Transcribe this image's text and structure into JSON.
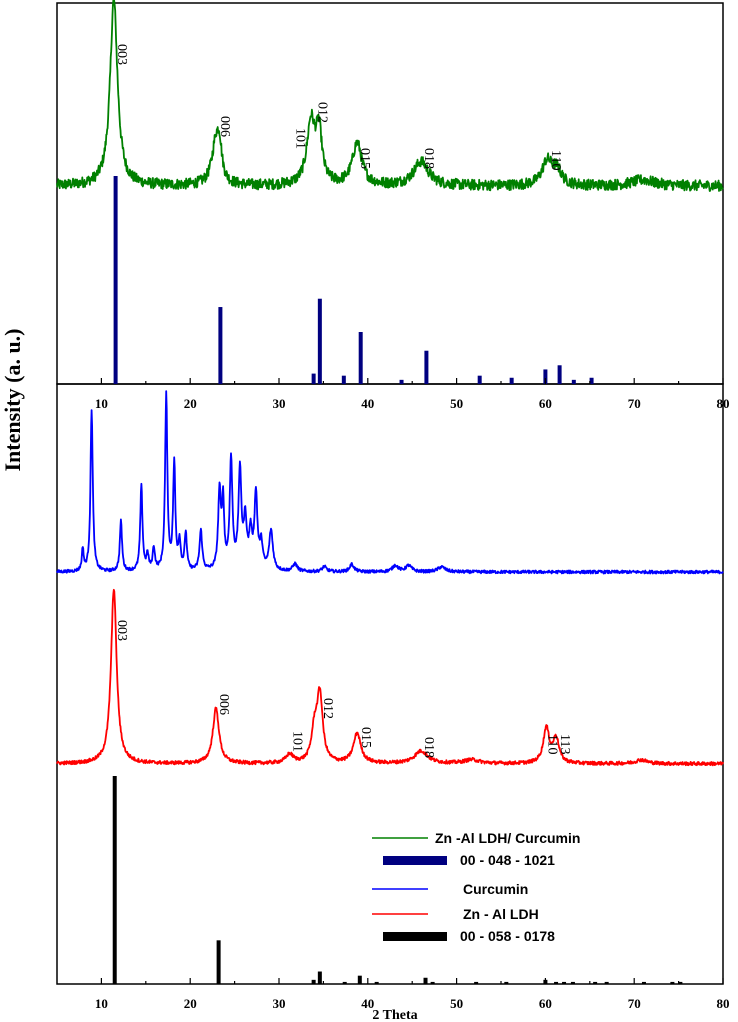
{
  "chart_data": {
    "type": "line",
    "xlabel": "2 Theta",
    "ylabel": "Intensity (a. u.)",
    "xlim": [
      5,
      80
    ],
    "x_ticks": [
      "10",
      "20",
      "30",
      "40",
      "50",
      "60",
      "70",
      "80"
    ],
    "panels": [
      {
        "id": "top",
        "series": [
          {
            "name": "Zn -Al LDH/ Curcumin",
            "color": "#008000",
            "baseline": 0.2,
            "noise": 0.045,
            "peaks": [
              [
                11.4,
                1.55,
                0.5
              ],
              [
                22.9,
                0.36,
                0.55
              ],
              [
                23.3,
                0.22,
                0.3
              ],
              [
                33.6,
                0.52,
                0.55
              ],
              [
                34.5,
                0.42,
                0.4
              ],
              [
                38.8,
                0.35,
                0.65
              ],
              [
                46.0,
                0.2,
                1.0
              ],
              [
                60.2,
                0.2,
                0.7
              ],
              [
                61.3,
                0.12,
                0.6
              ],
              [
                71.0,
                0.05,
                1.5
              ]
            ]
          }
        ],
        "reference": {
          "name": "00 - 048 - 1021",
          "color": "#000080",
          "lines": [
            [
              11.6,
              100
            ],
            [
              23.4,
              37
            ],
            [
              33.9,
              5
            ],
            [
              34.6,
              41
            ],
            [
              37.3,
              4
            ],
            [
              39.2,
              25
            ],
            [
              43.8,
              2
            ],
            [
              46.6,
              16
            ],
            [
              52.6,
              4
            ],
            [
              56.2,
              3
            ],
            [
              60.0,
              7
            ],
            [
              61.6,
              9
            ],
            [
              63.2,
              2
            ],
            [
              65.2,
              3
            ]
          ]
        },
        "peak_labels": [
          {
            "text": "003",
            "x": 11.4
          },
          {
            "text": "006",
            "x": 23.0
          },
          {
            "text": "101",
            "x": 31.5
          },
          {
            "text": "012",
            "x": 34.0
          },
          {
            "text": "015",
            "x": 38.8
          },
          {
            "text": "018",
            "x": 46.0
          },
          {
            "text": "110",
            "x": 60.3
          }
        ]
      },
      {
        "id": "bottom",
        "series": [
          {
            "name": "Curcumin",
            "color": "#0000ff",
            "baseline": 0.0,
            "noise": 0.012,
            "peaks": [
              [
                7.9,
                0.18,
                0.12
              ],
              [
                8.9,
                1.3,
                0.15
              ],
              [
                12.2,
                0.4,
                0.15
              ],
              [
                14.5,
                0.68,
                0.15
              ],
              [
                15.2,
                0.12,
                0.15
              ],
              [
                15.9,
                0.18,
                0.15
              ],
              [
                17.3,
                1.4,
                0.15
              ],
              [
                18.2,
                0.85,
                0.15
              ],
              [
                18.8,
                0.22,
                0.15
              ],
              [
                19.5,
                0.3,
                0.15
              ],
              [
                21.2,
                0.32,
                0.18
              ],
              [
                23.3,
                0.62,
                0.18
              ],
              [
                23.7,
                0.52,
                0.15
              ],
              [
                24.6,
                0.88,
                0.18
              ],
              [
                25.6,
                0.78,
                0.2
              ],
              [
                26.2,
                0.38,
                0.2
              ],
              [
                26.8,
                0.28,
                0.2
              ],
              [
                27.4,
                0.6,
                0.2
              ],
              [
                28.0,
                0.2,
                0.2
              ],
              [
                29.1,
                0.32,
                0.25
              ],
              [
                31.8,
                0.06,
                0.3
              ],
              [
                35.1,
                0.04,
                0.3
              ],
              [
                38.2,
                0.06,
                0.3
              ],
              [
                43.1,
                0.05,
                0.4
              ],
              [
                44.6,
                0.05,
                0.4
              ],
              [
                48.3,
                0.04,
                0.5
              ]
            ]
          },
          {
            "name": "Zn - Al LDH",
            "color": "#ff0000",
            "baseline": -1.75,
            "noise": 0.014,
            "peaks": [
              [
                11.4,
                1.4,
                0.38
              ],
              [
                22.9,
                0.44,
                0.42
              ],
              [
                31.2,
                0.07,
                0.5
              ],
              [
                34.0,
                0.25,
                0.4
              ],
              [
                34.6,
                0.53,
                0.38
              ],
              [
                38.8,
                0.24,
                0.5
              ],
              [
                46.0,
                0.1,
                0.9
              ],
              [
                51.7,
                0.03,
                1.0
              ],
              [
                60.1,
                0.28,
                0.4
              ],
              [
                61.2,
                0.2,
                0.4
              ],
              [
                70.8,
                0.03,
                0.8
              ]
            ]
          }
        ],
        "reference": {
          "name": "00 - 058 - 0178",
          "color": "#000000",
          "lines": [
            [
              11.5,
              100
            ],
            [
              23.2,
              21
            ],
            [
              33.9,
              2
            ],
            [
              34.6,
              6
            ],
            [
              37.4,
              1
            ],
            [
              39.1,
              4
            ],
            [
              41.0,
              1
            ],
            [
              46.5,
              3
            ],
            [
              47.3,
              1
            ],
            [
              52.2,
              1
            ],
            [
              55.6,
              1
            ],
            [
              60.0,
              2
            ],
            [
              61.2,
              1
            ],
            [
              62.1,
              1
            ],
            [
              63.1,
              1
            ],
            [
              65.6,
              1
            ],
            [
              66.9,
              1
            ],
            [
              71.1,
              1
            ],
            [
              74.3,
              1
            ],
            [
              75.2,
              1
            ]
          ]
        },
        "peak_labels": [
          {
            "text": "003",
            "x": 11.4
          },
          {
            "text": "006",
            "x": 22.9
          },
          {
            "text": "101",
            "x": 31.2
          },
          {
            "text": "012",
            "x": 34.6
          },
          {
            "text": "015",
            "x": 38.9
          },
          {
            "text": "018",
            "x": 46.0
          },
          {
            "text": "110",
            "x": 59.9
          },
          {
            "text": "113",
            "x": 61.3
          }
        ]
      }
    ],
    "legend_position": "bottom-right",
    "legend": [
      {
        "label": "Zn -Al LDH/ Curcumin",
        "color": "#008000",
        "style": "line"
      },
      {
        "label": "00 - 048 - 1021",
        "color": "#000080",
        "style": "bar"
      },
      {
        "label": "Curcumin",
        "color": "#0000ff",
        "style": "line"
      },
      {
        "label": "Zn - Al LDH",
        "color": "#ff0000",
        "style": "line"
      },
      {
        "label": "00 - 058 - 0178",
        "color": "#000000",
        "style": "bar"
      }
    ]
  }
}
